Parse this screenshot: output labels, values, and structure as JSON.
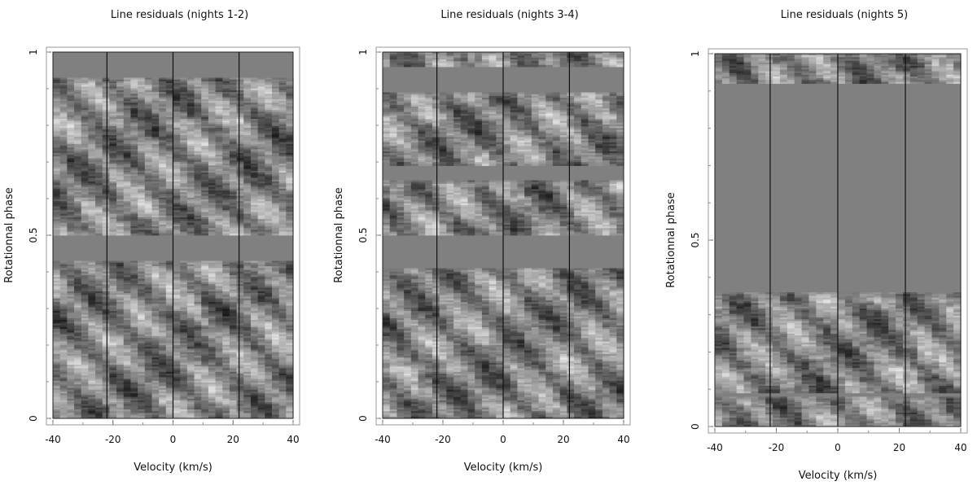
{
  "chart_data": [
    {
      "type": "heatmap",
      "title": "Line residuals (nights 1-2)",
      "xlabel": "Velocity (km/s)",
      "ylabel": "Rotationnal phase",
      "xlim": [
        -40,
        40
      ],
      "ylim": [
        0,
        1
      ],
      "x_ticks": [
        -40,
        -20,
        0,
        20,
        40
      ],
      "y_ticks": [
        0,
        0.5,
        1
      ],
      "y_tick_labels": [
        "0",
        "0.5",
        "1"
      ],
      "reference_velocities": [
        -22,
        0,
        22
      ],
      "missing_phase_bands": [
        [
          0.93,
          1.0
        ],
        [
          0.43,
          0.5
        ]
      ],
      "observed_phase_bands": [
        [
          0.0,
          0.43
        ],
        [
          0.5,
          0.93
        ]
      ],
      "colormap": "grayscale"
    },
    {
      "type": "heatmap",
      "title": "Line residuals (nights 3-4)",
      "xlabel": "Velocity (km/s)",
      "ylabel": "Rotationnal phase",
      "xlim": [
        -40,
        40
      ],
      "ylim": [
        0,
        1
      ],
      "x_ticks": [
        -40,
        -20,
        0,
        20,
        40
      ],
      "y_ticks": [
        0,
        0.5,
        1
      ],
      "y_tick_labels": [
        "0",
        "0.5",
        "1"
      ],
      "reference_velocities": [
        -22,
        0,
        22
      ],
      "missing_phase_bands": [
        [
          0.89,
          0.96
        ],
        [
          0.65,
          0.69
        ],
        [
          0.41,
          0.5
        ]
      ],
      "observed_phase_bands": [
        [
          0.0,
          0.41
        ],
        [
          0.5,
          0.65
        ],
        [
          0.69,
          0.89
        ],
        [
          0.96,
          1.0
        ]
      ],
      "colormap": "grayscale"
    },
    {
      "type": "heatmap",
      "title": "Line residuals (nights 5)",
      "xlabel": "Velocity (km/s)",
      "ylabel": "Rotationnal phase",
      "xlim": [
        -40,
        40
      ],
      "ylim": [
        0,
        1
      ],
      "x_ticks": [
        -40,
        -20,
        0,
        20,
        40
      ],
      "y_ticks": [
        0,
        0.5,
        1
      ],
      "y_tick_labels": [
        "0",
        "0.5",
        "1"
      ],
      "reference_velocities": [
        -22,
        0,
        22
      ],
      "missing_phase_bands": [
        [
          0.36,
          0.92
        ],
        [
          0.08,
          0.09
        ]
      ],
      "observed_phase_bands": [
        [
          0.0,
          0.08
        ],
        [
          0.09,
          0.36
        ],
        [
          0.92,
          1.0
        ]
      ],
      "colormap": "grayscale"
    }
  ]
}
